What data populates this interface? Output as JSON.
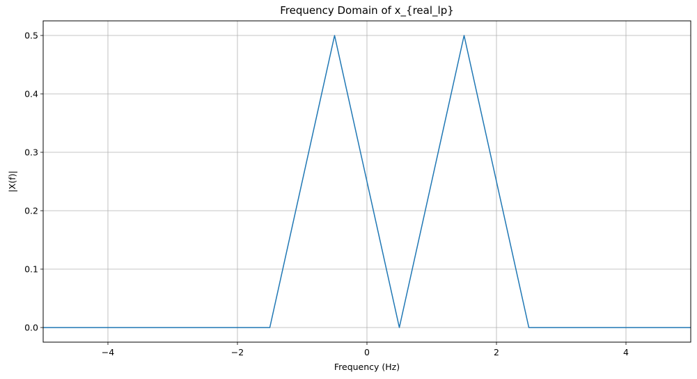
{
  "chart_data": {
    "type": "line",
    "title": "Frequency Domain of x_{real_lp}",
    "xlabel": "Frequency (Hz)",
    "ylabel": "|X(f)|",
    "xlim": [
      -5,
      5
    ],
    "ylim": [
      -0.025,
      0.525
    ],
    "xticks": [
      -4,
      -2,
      0,
      2,
      4
    ],
    "xtick_labels": [
      "−4",
      "−2",
      "0",
      "2",
      "4"
    ],
    "yticks": [
      0.0,
      0.1,
      0.2,
      0.3,
      0.4,
      0.5
    ],
    "ytick_labels": [
      "0.0",
      "0.1",
      "0.2",
      "0.3",
      "0.4",
      "0.5"
    ],
    "grid": true,
    "series": [
      {
        "color": "#1f77b4",
        "x": [
          -5,
          -1.5,
          -0.5,
          0.5,
          1.5,
          2.5,
          5
        ],
        "y": [
          0,
          0,
          0.5,
          0,
          0.5,
          0,
          0
        ]
      }
    ]
  }
}
